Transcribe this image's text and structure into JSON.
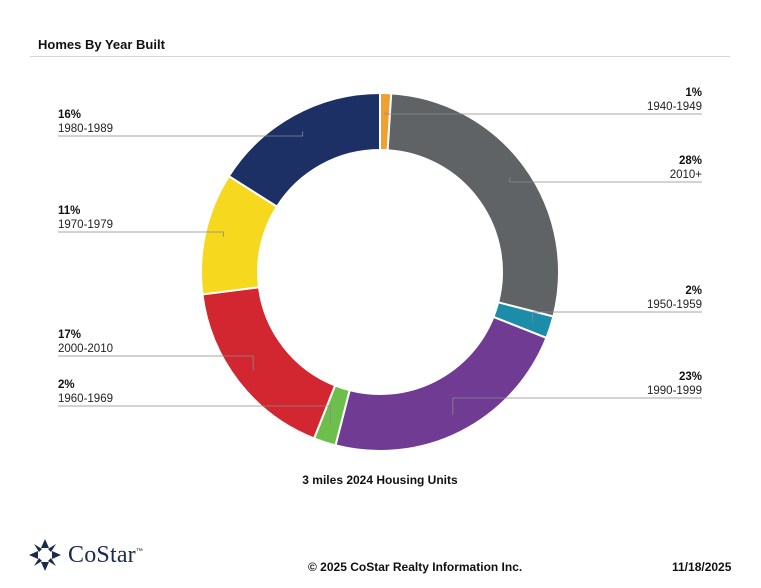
{
  "header": {
    "title": "Homes By Year Built"
  },
  "chart_data": {
    "type": "pie",
    "title": "Homes By Year Built",
    "subtitle": "3 miles 2024 Housing Units",
    "donut": true,
    "slices": [
      {
        "label": "1940-1949",
        "value": 1,
        "display": "1%",
        "color": "#f0a030"
      },
      {
        "label": "2010+",
        "value": 28,
        "display": "28%",
        "color": "#5f6366"
      },
      {
        "label": "1950-1959",
        "value": 2,
        "display": "2%",
        "color": "#1d8ca8"
      },
      {
        "label": "1990-1999",
        "value": 23,
        "display": "23%",
        "color": "#703b93"
      },
      {
        "label": "1960-1969",
        "value": 2,
        "display": "2%",
        "color": "#6cbf4a"
      },
      {
        "label": "2000-2010",
        "value": 17,
        "display": "17%",
        "color": "#d22630"
      },
      {
        "label": "1970-1979",
        "value": 11,
        "display": "11%",
        "color": "#f6d81e"
      },
      {
        "label": "1980-1989",
        "value": 16,
        "display": "16%",
        "color": "#1d3066"
      }
    ]
  },
  "footer": {
    "logo_text": "CoStar",
    "logo_tm": "™",
    "copyright": "© 2025 CoStar Realty Information Inc.",
    "date": "11/18/2025"
  }
}
